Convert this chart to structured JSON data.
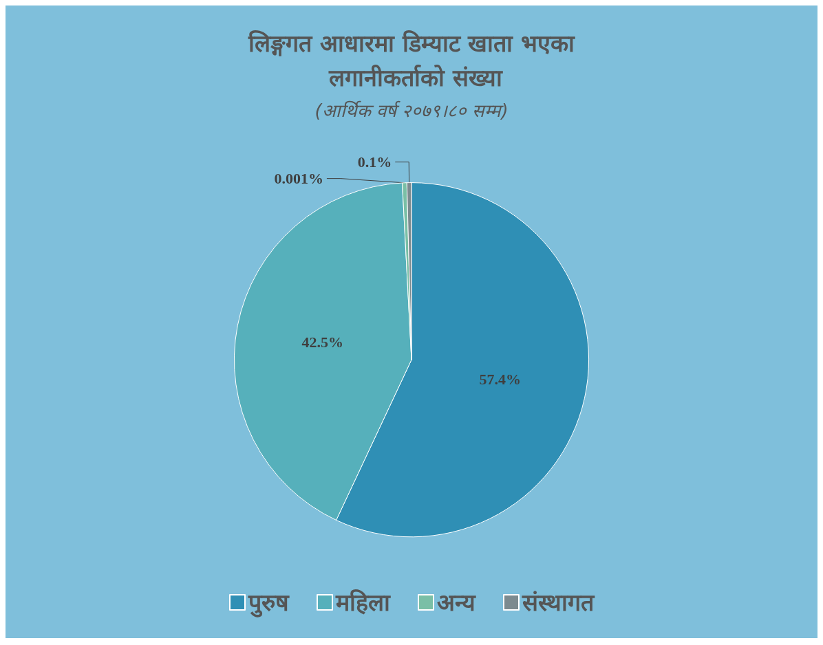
{
  "chart_data": {
    "type": "pie",
    "title": "लिङ्गगत आधारमा डिम्याट खाता भएका लगानीकर्ताको संख्या",
    "subtitle": "(आर्थिक वर्ष २०७९।८० सम्म)",
    "categories": [
      "पुरुष",
      "महिला",
      "अन्य",
      "संस्थागत"
    ],
    "values": [
      57.4,
      42.5,
      0.001,
      0.1
    ],
    "value_labels": [
      "57.4%",
      "42.5%",
      "0.001%",
      "0.1%"
    ],
    "colors": [
      "#2f8fb5",
      "#56b0bb",
      "#7abfa6",
      "#7c8a8f"
    ],
    "legend": "bottom"
  }
}
